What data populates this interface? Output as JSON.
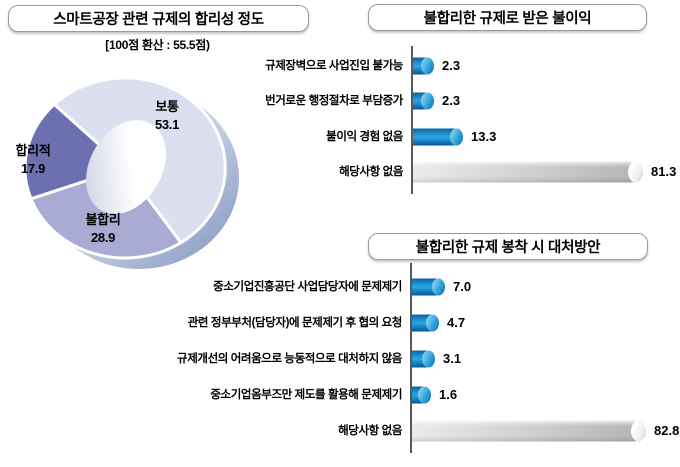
{
  "left_panel": {
    "title": "스마트공장 관련 규제의 합리성 정도",
    "subtitle": "[100점 환산 : 55.5점)"
  },
  "chart_data": [
    {
      "type": "pie",
      "style": "3d-donut",
      "title": "스마트공장 관련 규제의 합리성 정도",
      "subtitle": "[100점 환산 : 55.5점)",
      "labels": [
        "보통",
        "합리적",
        "불합리"
      ],
      "values": [
        53.1,
        17.9,
        28.9
      ],
      "colors": [
        "#dcdff0",
        "#6c70af",
        "#a9abd4"
      ],
      "separator_color": "#ffffff"
    },
    {
      "type": "bar",
      "orientation": "horizontal",
      "title": "불합리한 규제로 받은 불이익",
      "categories": [
        "규제장벽으로 사업진입 불가능",
        "번거로운 행정절차로 부담증가",
        "불이익 경험 없음",
        "해당사항 없음"
      ],
      "values": [
        2.3,
        2.3,
        13.3,
        81.3
      ],
      "bar_styles": [
        "blue",
        "blue",
        "blue",
        "silver"
      ],
      "bar_colors": {
        "blue": "#1a8ecb",
        "silver": "#c9c9c9"
      },
      "xlim": [
        0,
        100
      ],
      "grid": false,
      "value_labels": [
        "2.3",
        "2.3",
        "13.3",
        "81.3"
      ]
    },
    {
      "type": "bar",
      "orientation": "horizontal",
      "title": "불합리한 규제 봉착 시 대처방안",
      "categories": [
        "중소기업진흥공단 사업담당자에 문제제기",
        "관련 정부부처(담당자)에 문제제기 후 협의 요청",
        "규제개선의 어려움으로 능동적으로 대처하지 않음",
        "중소기업옴부즈만 제도를 활용해 문제제기",
        "해당사항 없음"
      ],
      "values": [
        7.0,
        4.7,
        3.1,
        1.6,
        82.8
      ],
      "bar_styles": [
        "blue",
        "blue",
        "blue",
        "blue",
        "silver"
      ],
      "bar_colors": {
        "blue": "#1a8ecb",
        "silver": "#c9c9c9"
      },
      "xlim": [
        0,
        100
      ],
      "grid": false,
      "value_labels": [
        "7.0",
        "4.7",
        "3.1",
        "1.6",
        "82.8"
      ]
    }
  ]
}
